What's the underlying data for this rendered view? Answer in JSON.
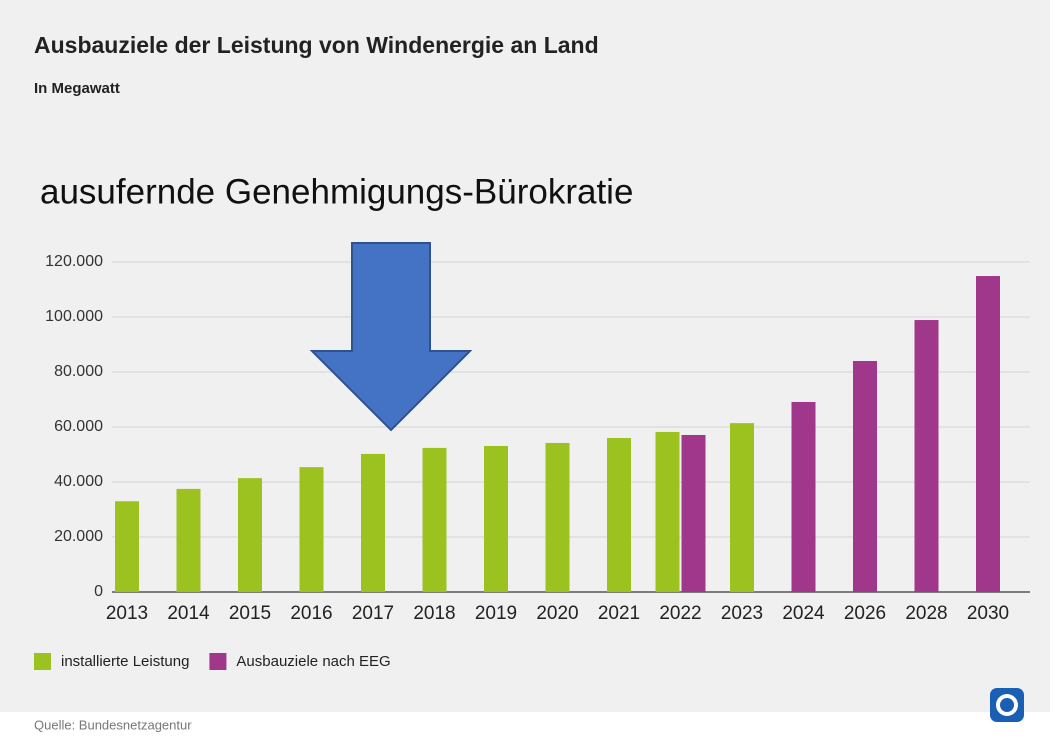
{
  "chart_data": {
    "type": "bar",
    "title": "Ausbauziele der Leistung von Windenergie an Land",
    "subtitle": "In Megawatt",
    "annotation": "ausufernde Genehmigungs-Bürokratie",
    "source": "Quelle: Bundesnetzagentur",
    "categories": [
      "2013",
      "2014",
      "2015",
      "2016",
      "2017",
      "2018",
      "2019",
      "2020",
      "2021",
      "2022",
      "2023",
      "2024",
      "2026",
      "2028",
      "2030"
    ],
    "series": [
      {
        "name": "installierte Leistung",
        "color": "#9bc21f",
        "values": [
          33000,
          37500,
          41400,
          45400,
          50200,
          52400,
          53100,
          54200,
          56000,
          58200,
          61400,
          null,
          null,
          null,
          null
        ]
      },
      {
        "name": "Ausbauziele nach EEG",
        "color": "#a0378a",
        "values": [
          null,
          null,
          null,
          null,
          null,
          null,
          null,
          null,
          null,
          57100,
          null,
          69100,
          84000,
          98900,
          114900
        ]
      }
    ],
    "ylim": [
      0,
      120000
    ],
    "yticks": [
      0,
      {
        "value": 20000,
        "label": "20.000"
      },
      {
        "value": 40000,
        "label": "40.000"
      },
      {
        "value": 60000,
        "label": "60.000"
      },
      {
        "value": 80000,
        "label": "80.000"
      },
      {
        "value": 100000,
        "label": "100.000"
      },
      {
        "value": 120000,
        "label": "120.000"
      }
    ],
    "grid": true,
    "legend": "bottom-left"
  }
}
